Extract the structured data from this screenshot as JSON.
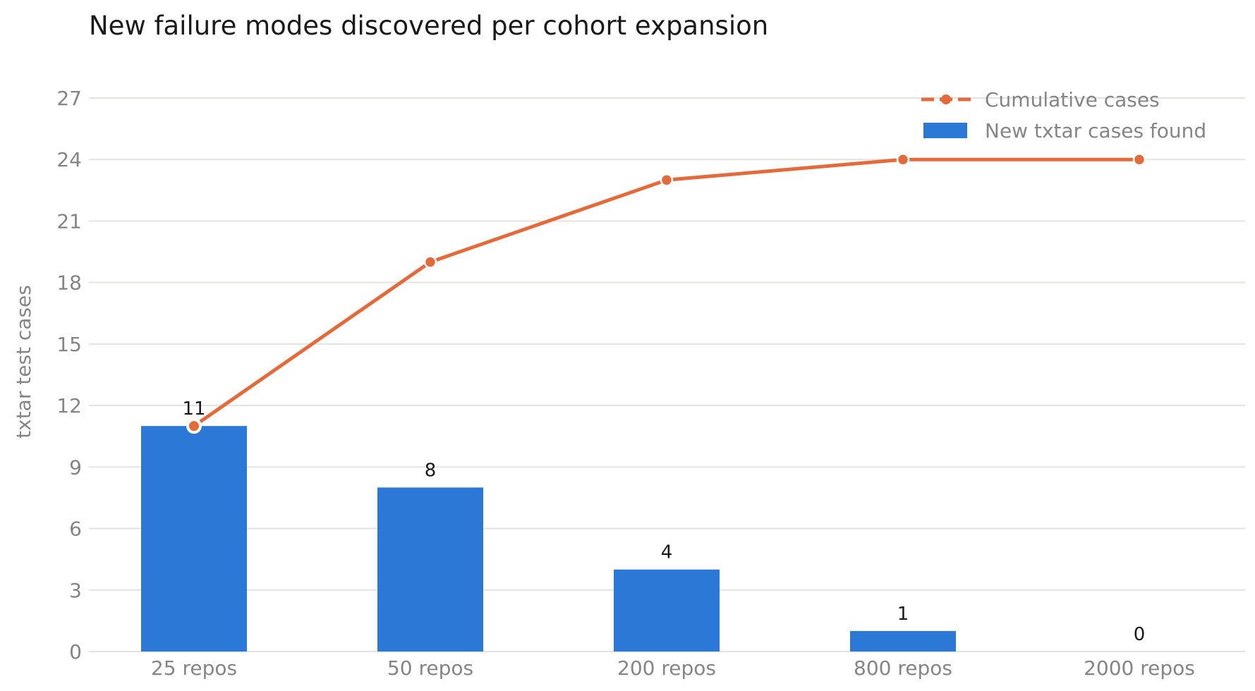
{
  "chart_data": {
    "type": "bar",
    "title": "New failure modes discovered per cohort expansion",
    "xlabel": "",
    "ylabel": "txtar test cases",
    "categories": [
      "25 repos",
      "50 repos",
      "200 repos",
      "800 repos",
      "2000 repos"
    ],
    "ylim": [
      0,
      27
    ],
    "yticks": [
      0,
      3,
      6,
      9,
      12,
      15,
      18,
      21,
      24,
      27
    ],
    "grid": true,
    "legend_position": "top-right",
    "series": [
      {
        "name": "New txtar cases found",
        "type": "bar",
        "color": "#2b78d6",
        "values": [
          11,
          8,
          4,
          1,
          0
        ]
      },
      {
        "name": "Cumulative cases",
        "type": "line",
        "color": "#e36a3a",
        "values": [
          11,
          19,
          23,
          24,
          24
        ]
      }
    ]
  }
}
